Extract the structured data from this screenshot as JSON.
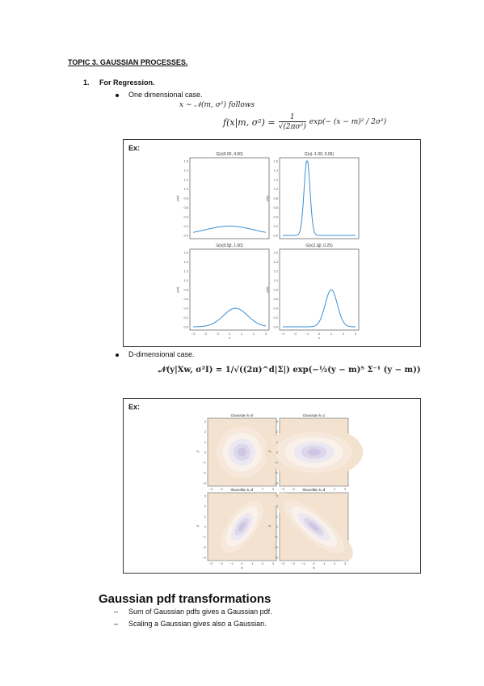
{
  "topic_title": "TOPIC 3. GAUSSIAN PROCESSES.",
  "section1": {
    "number": "1.",
    "title": "For Regression."
  },
  "bullet1": {
    "text": "One dimensional case.",
    "formula_line1": "x ∼ 𝒩(m, σ²) follows",
    "formula_lhs": "f(x|m, σ²) =",
    "formula_frac_num": "1",
    "formula_frac_den": "√(2πσ²)",
    "formula_exp": "exp(− (x − m)² / 2σ²)"
  },
  "example1": {
    "label": "Ex:",
    "panels": [
      {
        "title": "G(x|0.00, 4.00)",
        "ylabel": "p(x)",
        "xlabel": "x"
      },
      {
        "title": "G(x|−1.00, 0.06)",
        "ylabel": "p(x)",
        "xlabel": "x"
      },
      {
        "title": "G(x|0.50, 1.00)",
        "ylabel": "p(x)",
        "xlabel": "x"
      },
      {
        "title": "G(x|1.00, 0.25)",
        "ylabel": "p(x)",
        "xlabel": "x"
      }
    ],
    "y_ticks": [
      "0.0",
      "0.2",
      "0.4",
      "0.6",
      "0.8",
      "1.0",
      "1.2",
      "1.4",
      "1.6"
    ],
    "x_ticks": [
      "−3",
      "−2",
      "−1",
      "0",
      "1",
      "2",
      "3"
    ]
  },
  "bullet2": {
    "text": "D-dimensional case.",
    "formula": "𝒩(y|Xw, σ²I) = 1/√((2π)^d|Σ|) exp(−½(y − m)ᵀ Σ⁻¹ (y − m))"
  },
  "example2": {
    "label": "Ex:",
    "panels": [
      {
        "title": "Gaussian k=0"
      },
      {
        "title": "Gaussian k=1"
      },
      {
        "title": "Gaussian k=2"
      },
      {
        "title": "Gaussian k=3"
      }
    ],
    "xlabel": "x₁",
    "ylabel": "x₂"
  },
  "transformations": {
    "title": "Gaussian pdf transformations",
    "items": [
      "Sum of Gaussian pdfs gives a Gaussian pdf.",
      "Scaling a Gaussian gives also a Gaussian."
    ]
  },
  "chart_data": [
    {
      "type": "line",
      "title": "G(x|0.00, 4.00)",
      "xlabel": "x",
      "ylabel": "p(x)",
      "xlim": [
        -3,
        3
      ],
      "ylim": [
        0,
        1.6
      ],
      "gaussian": {
        "mean": 0.0,
        "variance": 4.0
      }
    },
    {
      "type": "line",
      "title": "G(x|−1.00, 0.06)",
      "xlabel": "x",
      "ylabel": "p(x)",
      "xlim": [
        -3,
        3
      ],
      "ylim": [
        0,
        1.6
      ],
      "gaussian": {
        "mean": -1.0,
        "variance": 0.06
      }
    },
    {
      "type": "line",
      "title": "G(x|0.50, 1.00)",
      "xlabel": "x",
      "ylabel": "p(x)",
      "xlim": [
        -3,
        3
      ],
      "ylim": [
        0,
        1.6
      ],
      "gaussian": {
        "mean": 0.5,
        "variance": 1.0
      }
    },
    {
      "type": "line",
      "title": "G(x|1.00, 0.25)",
      "xlabel": "x",
      "ylabel": "p(x)",
      "xlim": [
        -3,
        3
      ],
      "ylim": [
        0,
        1.6
      ],
      "gaussian": {
        "mean": 1.0,
        "variance": 0.25
      }
    }
  ],
  "colors": {
    "curve": "#3b8fd4",
    "contour_bg": "#f3e2cf",
    "contour_mid": "#f9f1ea",
    "contour_core": "#cfc6e3"
  }
}
